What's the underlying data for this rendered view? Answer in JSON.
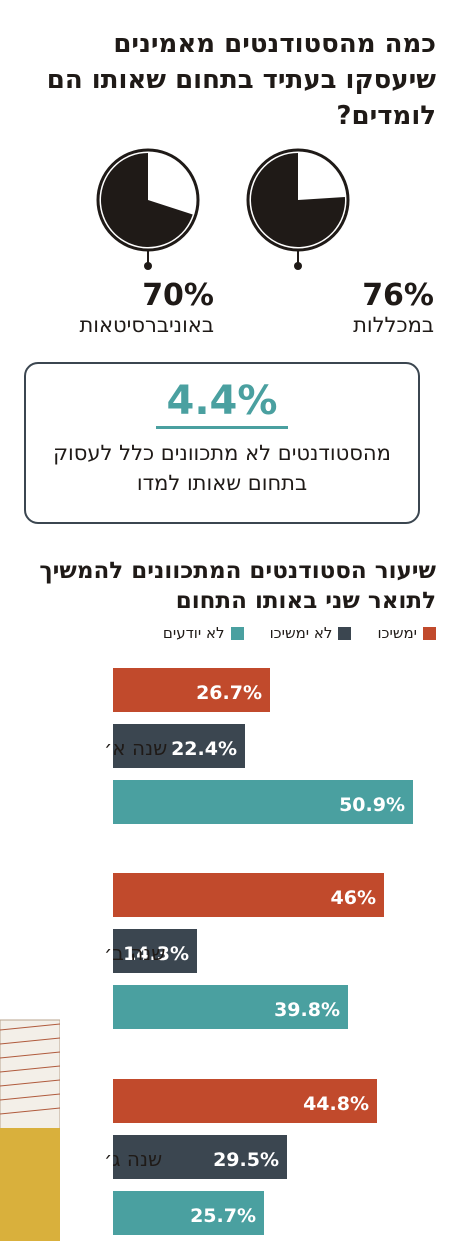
{
  "header": {
    "title": "כמה מהסטודנטים מאמינים שיעסקו בעתיד בתחום שאותו הם לומדים?"
  },
  "pies": [
    {
      "id": "colleges",
      "percent_label": "76%",
      "percent": 76,
      "label": "במכללות"
    },
    {
      "id": "universities",
      "percent_label": "70%",
      "percent": 70,
      "label": "באוניברסיטאות"
    }
  ],
  "callout": {
    "value": "4.4%",
    "text": "מהסטודנטים לא מתכוונים כלל לעסוק בתחום שאותו למדו"
  },
  "colors": {
    "dark": "#1f1a17",
    "red": "#c14a2c",
    "slate": "#3b4650",
    "teal": "#4aa0a0"
  },
  "chart_data": {
    "type": "bar",
    "title": "שיעור הסטודנטים המתכוונים להמשיך לתואר שני באותו התחום",
    "categories": [
      "שנה א׳",
      "שנה ב׳",
      "שנה ג׳"
    ],
    "series": [
      {
        "name": "ימשיכו",
        "color": "#c14a2c",
        "values": [
          26.7,
          46,
          44.8
        ],
        "labels": [
          "26.7%",
          "46%",
          "44.8%"
        ]
      },
      {
        "name": "לא ימשיכו",
        "color": "#3b4650",
        "values": [
          22.4,
          14.3,
          29.5
        ],
        "labels": [
          "22.4%",
          "14.3%",
          "29.5%"
        ]
      },
      {
        "name": "לא יודעים",
        "color": "#4aa0a0",
        "values": [
          50.9,
          39.8,
          25.7
        ],
        "labels": [
          "50.9%",
          "39.8%",
          "25.7%"
        ]
      }
    ],
    "xlim": [
      0,
      50.9
    ],
    "legend": "top"
  }
}
